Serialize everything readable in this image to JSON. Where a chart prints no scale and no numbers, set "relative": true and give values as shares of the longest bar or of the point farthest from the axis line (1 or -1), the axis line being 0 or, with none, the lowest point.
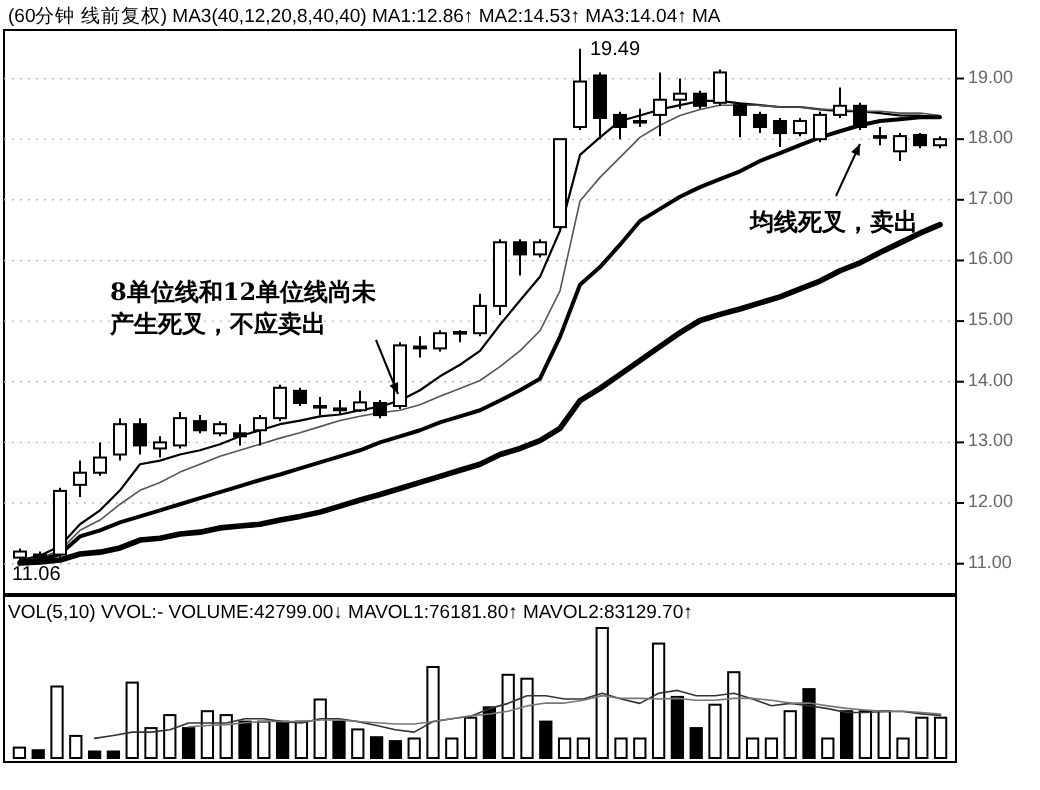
{
  "chart_data": [
    {
      "type": "candlestick",
      "title": "(60分钟 线前复权) MA3(40,12,20,8,40,40) MA1:12.86↑ MA2:14.53↑ MA3:14.04↑ MA",
      "categories": [
        null,
        null,
        null,
        null,
        null,
        null,
        null,
        null,
        null,
        null,
        null,
        null,
        null,
        null,
        null,
        null,
        null,
        null,
        null,
        null,
        null,
        null,
        null,
        null,
        null,
        null,
        null,
        null,
        null,
        null,
        null,
        null,
        null,
        null,
        null,
        null,
        null,
        null,
        null,
        null,
        null,
        null,
        null,
        null,
        null,
        null,
        null
      ],
      "ohlc": [
        [
          11.1,
          11.25,
          11.06,
          11.2
        ],
        [
          11.15,
          11.2,
          11.06,
          11.1
        ],
        [
          11.15,
          12.25,
          11.1,
          12.2
        ],
        [
          12.3,
          12.7,
          12.1,
          12.5
        ],
        [
          12.5,
          13.0,
          12.45,
          12.75
        ],
        [
          12.8,
          13.4,
          12.7,
          13.3
        ],
        [
          13.3,
          13.4,
          12.8,
          12.95
        ],
        [
          12.9,
          13.1,
          12.75,
          13.0
        ],
        [
          12.95,
          13.5,
          12.9,
          13.4
        ],
        [
          13.35,
          13.45,
          13.15,
          13.2
        ],
        [
          13.15,
          13.35,
          13.1,
          13.3
        ],
        [
          13.15,
          13.3,
          12.95,
          13.1
        ],
        [
          13.2,
          13.45,
          12.95,
          13.4
        ],
        [
          13.4,
          13.95,
          13.35,
          13.9
        ],
        [
          13.85,
          13.9,
          13.6,
          13.65
        ],
        [
          13.6,
          13.75,
          13.45,
          13.58
        ],
        [
          13.56,
          13.7,
          13.45,
          13.53
        ],
        [
          13.53,
          13.85,
          13.5,
          13.66
        ],
        [
          13.65,
          13.7,
          13.4,
          13.45
        ],
        [
          13.6,
          14.65,
          13.55,
          14.6
        ],
        [
          14.55,
          14.75,
          14.4,
          14.58
        ],
        [
          14.55,
          14.85,
          14.5,
          14.8
        ],
        [
          14.8,
          14.85,
          14.65,
          14.82
        ],
        [
          14.8,
          15.45,
          14.75,
          15.25
        ],
        [
          15.25,
          16.35,
          15.1,
          16.3
        ],
        [
          16.3,
          16.35,
          15.75,
          16.1
        ],
        [
          16.1,
          16.35,
          16.05,
          16.3
        ],
        [
          16.55,
          18.0,
          16.5,
          18.0
        ],
        [
          18.2,
          19.49,
          18.15,
          18.95
        ],
        [
          19.05,
          19.1,
          18.0,
          18.35
        ],
        [
          18.4,
          18.45,
          18.0,
          18.2
        ],
        [
          18.3,
          18.5,
          18.2,
          18.28
        ],
        [
          18.4,
          19.1,
          18.05,
          18.65
        ],
        [
          18.65,
          19.0,
          18.5,
          18.75
        ],
        [
          18.75,
          18.8,
          18.5,
          18.55
        ],
        [
          18.6,
          19.15,
          18.55,
          19.1
        ],
        [
          18.56,
          18.6,
          18.03,
          18.4
        ],
        [
          18.4,
          18.45,
          18.1,
          18.2
        ],
        [
          18.3,
          18.35,
          17.87,
          18.1
        ],
        [
          18.1,
          18.35,
          18.05,
          18.3
        ],
        [
          18.0,
          18.45,
          17.95,
          18.4
        ],
        [
          18.4,
          18.85,
          18.35,
          18.55
        ],
        [
          18.55,
          18.6,
          18.15,
          18.2
        ],
        [
          18.05,
          18.2,
          17.9,
          18.05
        ],
        [
          17.8,
          18.1,
          17.64,
          18.05
        ],
        [
          18.07,
          18.1,
          17.85,
          17.9
        ],
        [
          17.9,
          18.05,
          17.85,
          18.0
        ]
      ],
      "series": [
        {
          "type": "line",
          "color": "#000000",
          "values": [
            11.06,
            11.13,
            11.29,
            11.65,
            11.88,
            12.21,
            12.64,
            12.7,
            12.8,
            12.87,
            12.97,
            13.1,
            13.2,
            13.3,
            13.36,
            13.43,
            13.46,
            13.53,
            13.59,
            13.69,
            13.86,
            14.09,
            14.28,
            14.51,
            14.94,
            15.34,
            15.73,
            16.49,
            17.74,
            18.03,
            18.3,
            18.39,
            18.49,
            18.56,
            18.63,
            18.63,
            18.59,
            18.56,
            18.53,
            18.53,
            18.49,
            18.46,
            18.46,
            18.43,
            18.39,
            18.39,
            18.36
          ]
        },
        {
          "type": "line",
          "color": "#555555",
          "values": [
            11.03,
            11.09,
            11.22,
            11.55,
            11.72,
            11.98,
            12.21,
            12.34,
            12.51,
            12.64,
            12.77,
            12.87,
            12.97,
            13.07,
            13.16,
            13.26,
            13.36,
            13.43,
            13.49,
            13.53,
            13.62,
            13.76,
            13.89,
            14.02,
            14.25,
            14.51,
            14.84,
            15.5,
            16.98,
            17.37,
            17.7,
            18.03,
            18.23,
            18.39,
            18.49,
            18.56,
            18.56,
            18.56,
            18.53,
            18.53,
            18.49,
            18.49,
            18.46,
            18.46,
            18.43,
            18.43,
            18.39
          ]
        },
        {
          "type": "line",
          "color": "#000000",
          "values": [
            11.03,
            11.06,
            11.16,
            11.45,
            11.55,
            11.68,
            11.78,
            11.88,
            11.98,
            12.08,
            12.18,
            12.28,
            12.38,
            12.47,
            12.57,
            12.67,
            12.77,
            12.87,
            13.0,
            13.1,
            13.2,
            13.33,
            13.43,
            13.53,
            13.69,
            13.86,
            14.05,
            14.74,
            15.6,
            15.89,
            16.26,
            16.65,
            16.85,
            17.05,
            17.21,
            17.34,
            17.47,
            17.64,
            17.77,
            17.9,
            18.03,
            18.13,
            18.23,
            18.3,
            18.33,
            18.36,
            18.36
          ]
        },
        {
          "type": "line",
          "color": "#000000",
          "values": [
            11.01,
            11.03,
            11.06,
            11.16,
            11.19,
            11.26,
            11.39,
            11.42,
            11.49,
            11.52,
            11.59,
            11.62,
            11.65,
            11.72,
            11.78,
            11.85,
            11.95,
            12.05,
            12.14,
            12.24,
            12.34,
            12.44,
            12.54,
            12.64,
            12.8,
            12.9,
            13.03,
            13.23,
            13.69,
            13.89,
            14.12,
            14.35,
            14.58,
            14.81,
            15.01,
            15.11,
            15.2,
            15.3,
            15.4,
            15.53,
            15.66,
            15.83,
            15.96,
            16.13,
            16.29,
            16.45,
            16.59
          ]
        }
      ],
      "ylim": [
        10.5,
        19.8
      ],
      "yticks": [
        {
          "value": 11,
          "label": "11.00"
        },
        {
          "value": 12,
          "label": "12.00"
        },
        {
          "value": 13,
          "label": "13.00"
        },
        {
          "value": 14,
          "label": "14.00"
        },
        {
          "value": 15,
          "label": "15.00"
        },
        {
          "value": 16,
          "label": "16.00"
        },
        {
          "value": 17,
          "label": "17.00"
        },
        {
          "value": 18,
          "label": "18.00"
        },
        {
          "value": 19,
          "label": "19.00"
        }
      ],
      "grid": "y",
      "annotations": [
        "19.49",
        "11.06",
        "8单位线和12单位线尚未产生死叉，不应卖出",
        "均线死叉，卖出"
      ]
    },
    {
      "type": "bar",
      "title": "VOL(5,10) VVOL:-  VOLUME:42799.00↓  MAVOL1:76181.80↑  MAVOL2:83129.70↑",
      "relative": true,
      "categories": [
        null,
        null,
        null,
        null,
        null,
        null,
        null,
        null,
        null,
        null,
        null,
        null,
        null,
        null,
        null,
        null,
        null,
        null,
        null,
        null,
        null,
        null,
        null,
        null,
        null,
        null,
        null,
        null,
        null,
        null,
        null,
        null,
        null,
        null,
        null,
        null,
        null,
        null,
        null,
        null,
        null,
        null,
        null,
        null,
        null,
        null,
        null,
        null,
        null,
        null
      ],
      "values": [
        0.08,
        0.06,
        0.55,
        0.17,
        0.05,
        0.05,
        0.58,
        0.23,
        0.33,
        0.23,
        0.36,
        0.33,
        0.28,
        0.28,
        0.28,
        0.28,
        0.45,
        0.28,
        0.22,
        0.16,
        0.13,
        0.15,
        0.7,
        0.15,
        0.31,
        0.39,
        0.64,
        0.61,
        0.28,
        0.15,
        0.15,
        1.0,
        0.15,
        0.15,
        0.88,
        0.47,
        0.23,
        0.41,
        0.66,
        0.15,
        0.15,
        0.36,
        0.53,
        0.15,
        0.36,
        0.36,
        0.36,
        0.15,
        0.31,
        0.31
      ],
      "colors": [
        "#ffffff",
        "#000000",
        "#ffffff",
        "#ffffff",
        "#000000",
        "#000000",
        "#ffffff",
        "#ffffff",
        "#ffffff",
        "#000000",
        "#ffffff",
        "#ffffff",
        "#000000",
        "#ffffff",
        "#000000",
        "#ffffff",
        "#ffffff",
        "#000000",
        "#ffffff",
        "#000000",
        "#000000",
        "#ffffff",
        "#ffffff",
        "#ffffff",
        "#ffffff",
        "#000000",
        "#ffffff",
        "#ffffff",
        "#000000",
        "#ffffff",
        "#ffffff",
        "#ffffff",
        "#ffffff",
        "#ffffff",
        "#ffffff",
        "#000000",
        "#000000",
        "#ffffff",
        "#ffffff",
        "#ffffff",
        "#ffffff",
        "#ffffff",
        "#000000",
        "#ffffff",
        "#000000",
        "#ffffff",
        "#ffffff",
        "#ffffff",
        "#ffffff",
        "#ffffff"
      ]
    },
    {
      "type": "line",
      "relative": true,
      "categories": [
        null,
        null,
        null,
        null,
        null,
        null,
        null,
        null,
        null,
        null,
        null,
        null,
        null,
        null,
        null,
        null,
        null,
        null,
        null,
        null,
        null,
        null,
        null,
        null,
        null,
        null,
        null,
        null,
        null,
        null,
        null,
        null,
        null,
        null,
        null,
        null,
        null,
        null,
        null,
        null,
        null,
        null,
        null,
        null,
        null,
        null
      ],
      "series": [
        {
          "color": "#333333",
          "values": [
            0,
            0.06,
            0.13,
            0.13,
            0.18,
            0.32,
            0.32,
            0.32,
            0.41,
            0.41,
            0.35,
            0.32,
            0.41,
            0.41,
            0.35,
            0.27,
            0.18,
            0.13,
            0.35,
            0.41,
            0.46,
            0.62,
            0.73,
            0.89,
            0.89,
            0.82,
            0.82,
            0.94,
            0.82,
            0.73,
            0.94,
            1,
            0.89,
            0.89,
            0.94,
            0.82,
            0.68,
            0.73,
            0.68,
            0.62,
            0.54,
            0.54,
            0.56,
            0.56,
            0.51,
            0.48
          ]
        }
      ]
    },
    {
      "type": "line",
      "relative": true,
      "categories": [
        null,
        null,
        null,
        null,
        null,
        null,
        null,
        null,
        null,
        null,
        null,
        null,
        null,
        null,
        null,
        null,
        null,
        null,
        null,
        null,
        null,
        null,
        null,
        null,
        null,
        null,
        null,
        null,
        null,
        null,
        null,
        null,
        null,
        null,
        null,
        null,
        null,
        null,
        null,
        null,
        null
      ],
      "series": [
        {
          "color": "#777777",
          "values": [
            0,
            0.04,
            0.07,
            0.13,
            0.17,
            0.17,
            0.17,
            0.22,
            0.22,
            0.17,
            0.13,
            0.09,
            0.09,
            0.17,
            0.26,
            0.35,
            0.41,
            0.5,
            0.67,
            0.76,
            0.76,
            0.85,
            1,
            0.91,
            0.91,
            0.89,
            0.91,
            0.85,
            0.85,
            0.91,
            0.91,
            0.85,
            0.76,
            0.76,
            0.67,
            0.59,
            0.54,
            0.5,
            0.5,
            0.46,
            0.41
          ]
        }
      ]
    }
  ]
}
